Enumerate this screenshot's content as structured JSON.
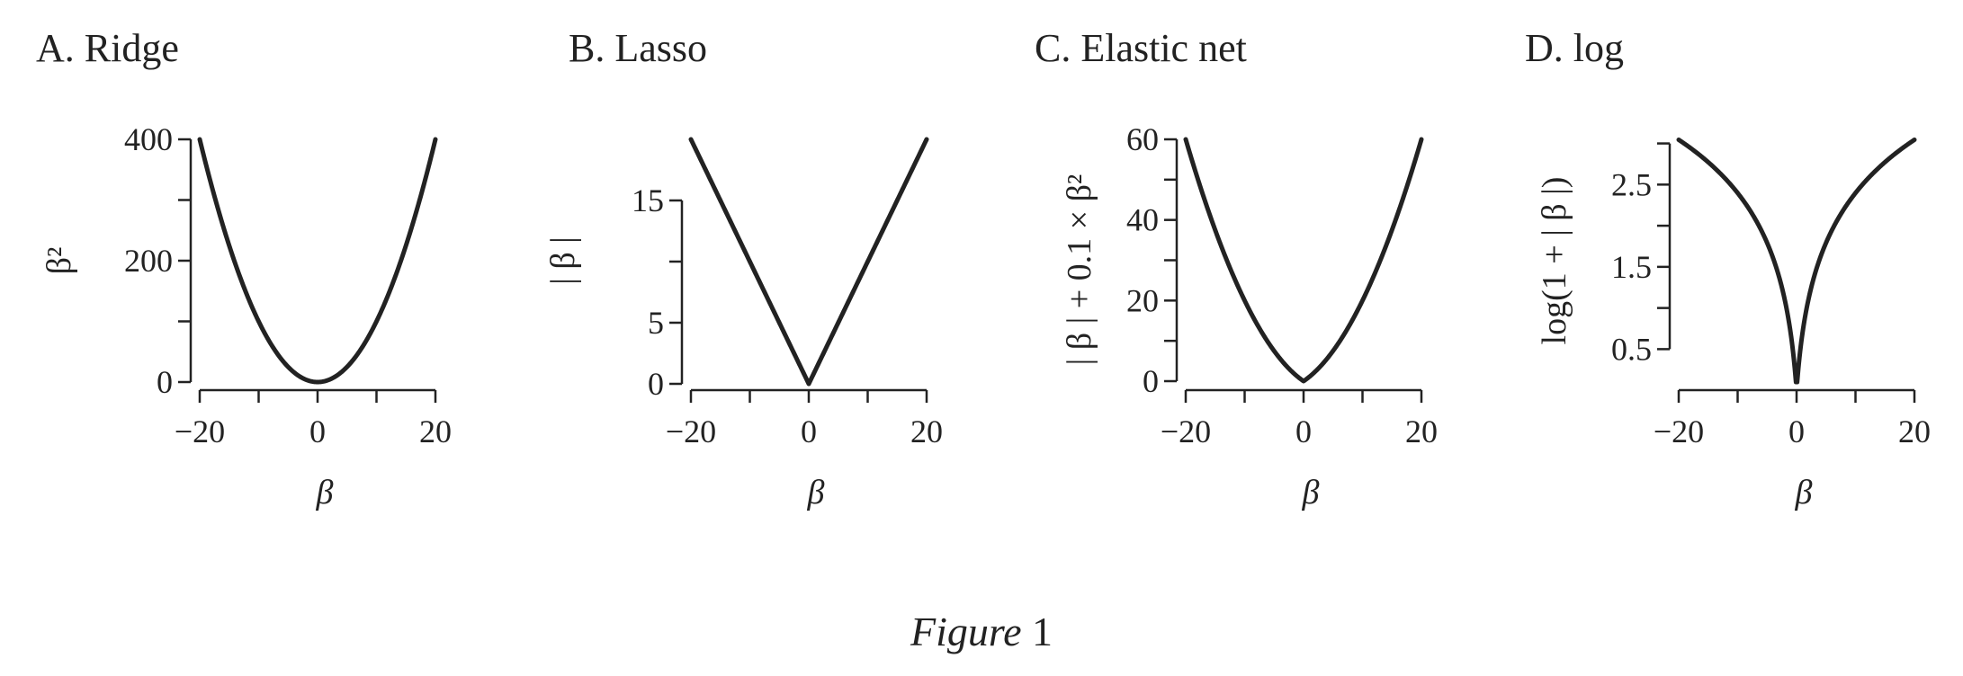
{
  "caption": {
    "italic": "Figure",
    "number": "1"
  },
  "chart_data": [
    {
      "type": "line",
      "title": "A. Ridge",
      "xlabel": "β",
      "ylabel": "β²",
      "xlim": [
        -20,
        20
      ],
      "ylim": [
        0,
        400
      ],
      "x_ticks": [
        -20,
        -10,
        0,
        10,
        20
      ],
      "x_tick_labels": [
        "−20",
        "",
        "0",
        "",
        "20"
      ],
      "y_ticks": [
        0,
        100,
        200,
        300,
        400
      ],
      "y_tick_labels": [
        "0",
        "",
        "200",
        "",
        "400"
      ],
      "function": "square",
      "x": [
        -20,
        -15,
        -10,
        -5,
        0,
        5,
        10,
        15,
        20
      ],
      "y": [
        400,
        225,
        100,
        25,
        0,
        25,
        100,
        225,
        400
      ]
    },
    {
      "type": "line",
      "title": "B. Lasso",
      "xlabel": "β",
      "ylabel": "| β |",
      "xlim": [
        -20,
        20
      ],
      "ylim": [
        0,
        20
      ],
      "x_ticks": [
        -20,
        -10,
        0,
        10,
        20
      ],
      "x_tick_labels": [
        "−20",
        "",
        "0",
        "",
        "20"
      ],
      "y_ticks": [
        0,
        5,
        10,
        15
      ],
      "y_tick_labels": [
        "0",
        "5",
        "",
        "15"
      ],
      "function": "abs",
      "x": [
        -20,
        -10,
        0,
        10,
        20
      ],
      "y": [
        20,
        10,
        0,
        10,
        20
      ]
    },
    {
      "type": "line",
      "title": "C. Elastic net",
      "xlabel": "β",
      "ylabel": "| β | + 0.1 × β²",
      "xlim": [
        -20,
        20
      ],
      "ylim": [
        0,
        60
      ],
      "x_ticks": [
        -20,
        -10,
        0,
        10,
        20
      ],
      "x_tick_labels": [
        "−20",
        "",
        "0",
        "",
        "20"
      ],
      "y_ticks": [
        0,
        10,
        20,
        30,
        40,
        50,
        60
      ],
      "y_tick_labels": [
        "0",
        "",
        "20",
        "",
        "40",
        "",
        "60"
      ],
      "function": "elastic",
      "x": [
        -20,
        -10,
        0,
        10,
        20
      ],
      "y": [
        60,
        20,
        0,
        20,
        60
      ]
    },
    {
      "type": "line",
      "title": "D. log",
      "xlabel": "β",
      "ylabel": "log(1 + | β |)",
      "xlim": [
        -20,
        20
      ],
      "ylim": [
        0.1,
        3.05
      ],
      "x_ticks": [
        -20,
        -10,
        0,
        10,
        20
      ],
      "x_tick_labels": [
        "−20",
        "",
        "0",
        "",
        "20"
      ],
      "y_ticks": [
        0.5,
        1,
        1.5,
        2,
        2.5,
        3
      ],
      "y_tick_labels": [
        "0.5",
        "",
        "1.5",
        "",
        "2.5",
        ""
      ],
      "function": "log1pabs",
      "x": [
        -20,
        -10,
        0,
        10,
        20
      ],
      "y": [
        3.04,
        2.4,
        0,
        2.4,
        3.04
      ]
    }
  ]
}
